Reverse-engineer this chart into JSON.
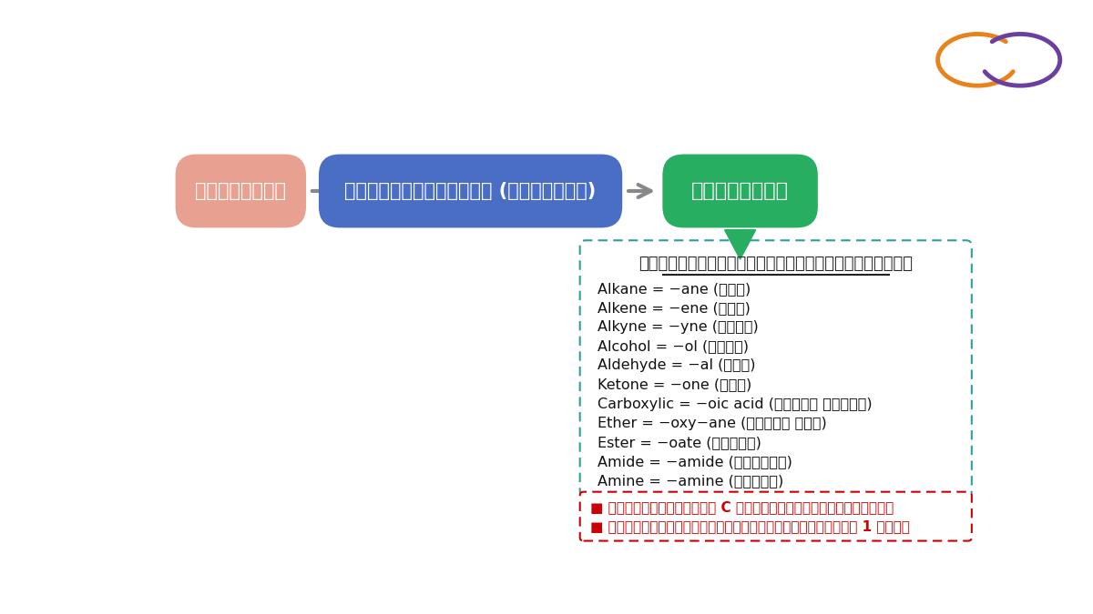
{
  "bg_color": "#ffffff",
  "box1_text": "คำนำหน้า",
  "box1_color": "#E8A090",
  "box1_text_color": "#ffffff",
  "box2_text": "โครงสร้างหลัก (โซ่หลัก)",
  "box2_color": "#4A6EC3",
  "box2_text_color": "#ffffff",
  "box3_text": "คำลงท้าย",
  "box3_color": "#27AE60",
  "box3_text_color": "#ffffff",
  "arrow_color": "#888888",
  "box_title": "ชื่อเรียกฉพาะตามหมู่ฟังก์ชัน",
  "nomenclature_lines": [
    "Alkane = −ane (เอน)",
    "Alkene = −ene (อีน)",
    "Alkyne = −yne (ไอน์)",
    "Alcohol = −ol (ออล์)",
    "Aldehyde = −al (แอล)",
    "Ketone = −one (โอน)",
    "Carboxylic = −oic acid (โออิก แอซิด)",
    "Ether = −oxy−ane (ออกซี เอน)",
    "Ester = −oate (โอเอต)",
    "Amide = −amide (เอไมด์)",
    "Amine = −amine (แอมิน)"
  ],
  "note_lines": [
    "■ ตัวเลขตำแหน่ง C ที่หมู่ฟังก์ชันเกาะ",
    "■ คำลงท้ายของหมู่ฟังก์ชันมากกว่า 1 หมู่"
  ],
  "note_color": "#cc0000",
  "box_border_color": "#2aa0a0",
  "note_border_color": "#cc0000",
  "green_arrow_color": "#27AE60",
  "logo_orange": "#E8821A",
  "logo_purple": "#6B3FA0"
}
